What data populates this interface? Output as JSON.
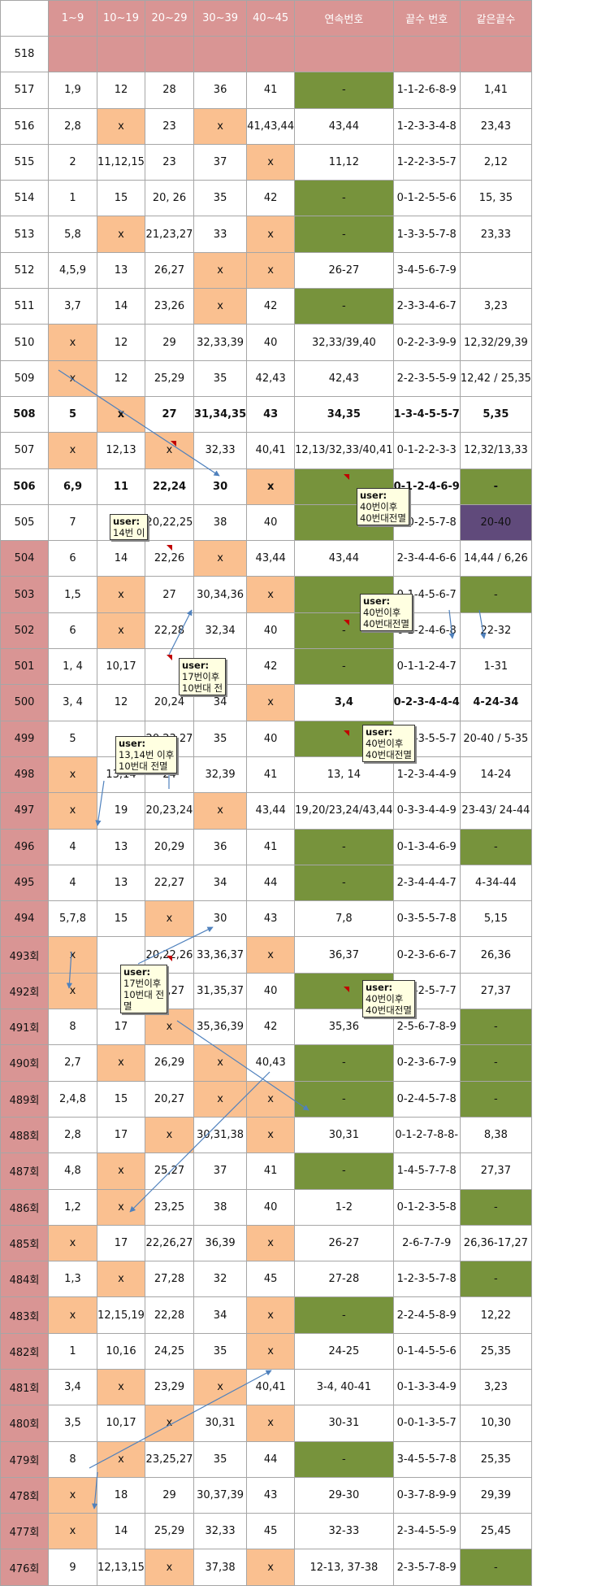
{
  "columns": [
    "1~9",
    "10~19",
    "20~29",
    "30~39",
    "40~45",
    "연속번호",
    "끝수 번호",
    "같은끝수"
  ],
  "rows": [
    {
      "round": "518",
      "cells": [
        "",
        "",
        "",
        "",
        "",
        "",
        "",
        ""
      ],
      "pink_row": true
    },
    {
      "round": "517",
      "cells": [
        "1,9",
        "12",
        "28",
        "36",
        "41",
        "-",
        "1-1-2-6-8-9",
        "1,41"
      ],
      "g": [
        5
      ]
    },
    {
      "round": "516",
      "cells": [
        "2,8",
        "x",
        "23",
        "x",
        "41,43,44",
        "43,44",
        "1-2-3-3-4-8",
        "23,43"
      ],
      "x": [
        1,
        3
      ]
    },
    {
      "round": "515",
      "cells": [
        "2",
        "11,12,15",
        "23",
        "37",
        "x",
        "11,12",
        "1-2-2-3-5-7",
        "2,12"
      ],
      "x": [
        4
      ]
    },
    {
      "round": "514",
      "cells": [
        "1",
        "15",
        "20, 26",
        "35",
        "42",
        "-",
        "0-1-2-5-5-6",
        "15, 35"
      ],
      "g": [
        5
      ]
    },
    {
      "round": "513",
      "cells": [
        "5,8",
        "x",
        "21,23,27",
        "33",
        "x",
        "-",
        "1-3-3-5-7-8",
        "23,33"
      ],
      "x": [
        1,
        4
      ],
      "g": [
        5
      ]
    },
    {
      "round": "512",
      "cells": [
        "4,5,9",
        "13",
        "26,27",
        "x",
        "x",
        "26-27",
        "3-4-5-6-7-9",
        ""
      ],
      "x": [
        3,
        4
      ]
    },
    {
      "round": "511",
      "cells": [
        "3,7",
        "14",
        "23,26",
        "x",
        "42",
        "-",
        "2-3-3-4-6-7",
        "3,23"
      ],
      "x": [
        3
      ],
      "g": [
        5
      ]
    },
    {
      "round": "510",
      "cells": [
        "x",
        "12",
        "29",
        "32,33,39",
        "40",
        "32,33/39,40",
        "0-2-2-3-9-9",
        "12,32/29,39"
      ],
      "x": [
        0
      ]
    },
    {
      "round": "509",
      "cells": [
        "x",
        "12",
        "25,29",
        "35",
        "42,43",
        "42,43",
        "2-2-3-5-5-9",
        "12,42 / 25,35"
      ],
      "x": [
        0
      ]
    },
    {
      "round": "508",
      "cells": [
        "5",
        "x",
        "27",
        "31,34,35",
        "43",
        "34,35",
        "1-3-4-5-5-7",
        "5,35"
      ],
      "x": [
        1
      ],
      "bold": true
    },
    {
      "round": "507",
      "cells": [
        "x",
        "12,13",
        "x",
        "32,33",
        "40,41",
        "12,13/32,33/40,41",
        "0-1-2-2-3-3",
        "12,32/13,33"
      ],
      "x": [
        0,
        2
      ],
      "small": [
        5
      ]
    },
    {
      "round": "506",
      "cells": [
        "6,9",
        "11",
        "22,24",
        "30",
        "x",
        "",
        "0-1-2-4-6-9",
        "-"
      ],
      "x": [
        4
      ],
      "g": [
        5,
        7
      ],
      "bold": true
    },
    {
      "round": "505",
      "cells": [
        "7",
        "",
        "20,22,25",
        "38",
        "40",
        "",
        "0-0-2-5-7-8",
        "20-40"
      ],
      "g": [
        5
      ],
      "p": [
        7
      ]
    },
    {
      "round": "504",
      "cells": [
        "6",
        "14",
        "22,26",
        "x",
        "43,44",
        "43,44",
        "2-3-4-4-6-6",
        "14,44 / 6,26"
      ],
      "x": [
        3
      ],
      "pink_num": true
    },
    {
      "round": "503",
      "cells": [
        "1,5",
        "x",
        "27",
        "30,34,36",
        "x",
        "",
        "0-1-4-5-6-7",
        "-"
      ],
      "x": [
        1,
        4
      ],
      "g": [
        5,
        7
      ],
      "pink_num": true
    },
    {
      "round": "502",
      "cells": [
        "6",
        "x",
        "22,28",
        "32,34",
        "40",
        "-",
        "0-2-2-4-6-8",
        "22-32"
      ],
      "x": [
        1
      ],
      "g": [
        5
      ],
      "pink_num": true
    },
    {
      "round": "501",
      "cells": [
        "1,  4",
        "10,17",
        "",
        "31",
        "42",
        "-",
        "0-1-1-2-4-7",
        "1-31"
      ],
      "g": [
        5
      ],
      "pink_num": true
    },
    {
      "round": "500",
      "cells": [
        "3,  4",
        "12",
        "20,24",
        "34",
        "x",
        "3,4",
        "0-2-3-4-4-4",
        "4-24-34"
      ],
      "x": [
        4
      ],
      "pink_num": true,
      "bold_cols": [
        5,
        6,
        7
      ]
    },
    {
      "round": "499",
      "cells": [
        "5",
        "",
        "20,23,27",
        "35",
        "40",
        "",
        "0-0-3-5-5-7",
        "20-40 / 5-35"
      ],
      "g": [
        5
      ],
      "pink_num": true
    },
    {
      "round": "498",
      "cells": [
        "x",
        "13,14",
        "24",
        "32,39",
        "41",
        "13, 14",
        "1-2-3-4-4-9",
        "14-24"
      ],
      "x": [
        0
      ],
      "pink_num": true
    },
    {
      "round": "497",
      "cells": [
        "x",
        "19",
        "20,23,24",
        "x",
        "43,44",
        "19,20/23,24/43,44",
        "0-3-3-4-4-9",
        "23-43/ 24-44"
      ],
      "x": [
        0,
        3
      ],
      "small": [
        5
      ],
      "pink_num": true
    },
    {
      "round": "496",
      "cells": [
        "4",
        "13",
        "20,29",
        "36",
        "41",
        "-",
        "0-1-3-4-6-9",
        "-"
      ],
      "g": [
        5,
        7
      ],
      "pink_num": true
    },
    {
      "round": "495",
      "cells": [
        "4",
        "13",
        "22,27",
        "34",
        "44",
        "-",
        "2-3-4-4-4-7",
        "4-34-44"
      ],
      "g": [
        5
      ],
      "pink_num": true
    },
    {
      "round": "494",
      "cells": [
        "5,7,8",
        "15",
        "x",
        "30",
        "43",
        "7,8",
        "0-3-5-5-7-8",
        "5,15"
      ],
      "x": [
        2
      ],
      "pink_num": true
    },
    {
      "round": "493회",
      "cells": [
        "x",
        "",
        "20,22,26",
        "33,36,37",
        "x",
        "36,37",
        "0-2-3-6-6-7",
        "26,36"
      ],
      "x": [
        0,
        4
      ],
      "pink_num": true
    },
    {
      "round": "492회",
      "cells": [
        "x",
        "",
        "22,27",
        "31,35,37",
        "40",
        "",
        "0-1-2-5-7-7",
        "27,37"
      ],
      "x": [
        0
      ],
      "g": [
        5
      ],
      "pink_num": true
    },
    {
      "round": "491회",
      "cells": [
        "8",
        "17",
        "x",
        "35,36,39",
        "42",
        "35,36",
        "2-5-6-7-8-9",
        "-"
      ],
      "x": [
        2
      ],
      "g": [
        7
      ],
      "pink_num": true
    },
    {
      "round": "490회",
      "cells": [
        "2,7",
        "x",
        "26,29",
        "x",
        "40,43",
        "-",
        "0-2-3-6-7-9",
        "-"
      ],
      "x": [
        1,
        3
      ],
      "g": [
        5,
        7
      ],
      "pink_num": true
    },
    {
      "round": "489회",
      "cells": [
        "2,4,8",
        "15",
        "20,27",
        "x",
        "x",
        "-",
        "0-2-4-5-7-8",
        "-"
      ],
      "x": [
        3,
        4
      ],
      "g": [
        5,
        7
      ],
      "pink_num": true
    },
    {
      "round": "488회",
      "cells": [
        "2,8",
        "17",
        "x",
        "30,31,38",
        "x",
        "30,31",
        "0-1-2-7-8-8-",
        "8,38"
      ],
      "x": [
        2,
        4
      ],
      "pink_num": true
    },
    {
      "round": "487회",
      "cells": [
        "4,8",
        "x",
        "25,27",
        "37",
        "41",
        "-",
        "1-4-5-7-7-8",
        "27,37"
      ],
      "x": [
        1
      ],
      "g": [
        5
      ],
      "pink_num": true
    },
    {
      "round": "486회",
      "cells": [
        "1,2",
        "x",
        "23,25",
        "38",
        "40",
        "1-2",
        "0-1-2-3-5-8",
        "-"
      ],
      "x": [
        1
      ],
      "g": [
        7
      ],
      "pink_num": true
    },
    {
      "round": "485회",
      "cells": [
        "x",
        "17",
        "22,26,27",
        "36,39",
        "x",
        "26-27",
        "2-6-7-7-9",
        "26,36-17,27"
      ],
      "x": [
        0,
        4
      ],
      "pink_num": true
    },
    {
      "round": "484회",
      "cells": [
        "1,3",
        "x",
        "27,28",
        "32",
        "45",
        "27-28",
        "1-2-3-5-7-8",
        "-"
      ],
      "x": [
        1
      ],
      "g": [
        7
      ],
      "pink_num": true
    },
    {
      "round": "483회",
      "cells": [
        "x",
        "12,15,19",
        "22,28",
        "34",
        "x",
        "-",
        "2-2-4-5-8-9",
        "12,22"
      ],
      "x": [
        0,
        4
      ],
      "g": [
        5
      ],
      "pink_num": true
    },
    {
      "round": "482회",
      "cells": [
        "1",
        "10,16",
        "24,25",
        "35",
        "x",
        "24-25",
        "0-1-4-5-5-6",
        "25,35"
      ],
      "x": [
        4
      ],
      "pink_num": true
    },
    {
      "round": "481회",
      "cells": [
        "3,4",
        "x",
        "23,29",
        "x",
        "40,41",
        "3-4, 40-41",
        "0-1-3-3-4-9",
        "3,23"
      ],
      "x": [
        1,
        3
      ],
      "pink_num": true
    },
    {
      "round": "480회",
      "cells": [
        "3,5",
        "10,17",
        "x",
        "30,31",
        "x",
        "30-31",
        "0-0-1-3-5-7",
        "10,30"
      ],
      "x": [
        2,
        4
      ],
      "pink_num": true
    },
    {
      "round": "479회",
      "cells": [
        "8",
        "x",
        "23,25,27",
        "35",
        "44",
        "-",
        "3-4-5-5-7-8",
        "25,35"
      ],
      "x": [
        1
      ],
      "g": [
        5
      ],
      "pink_num": true
    },
    {
      "round": "478회",
      "cells": [
        "x",
        "18",
        "29",
        "30,37,39",
        "43",
        "29-30",
        "0-3-7-8-9-9",
        "29,39"
      ],
      "x": [
        0
      ],
      "pink_num": true
    },
    {
      "round": "477회",
      "cells": [
        "x",
        "14",
        "25,29",
        "32,33",
        "45",
        "32-33",
        "2-3-4-5-5-9",
        "25,45"
      ],
      "x": [
        0
      ],
      "pink_num": true
    },
    {
      "round": "476회",
      "cells": [
        "9",
        "12,13,15",
        "x",
        "37,38",
        "x",
        "12-13, 37-38",
        "2-3-5-7-8-9",
        "-"
      ],
      "x": [
        2,
        4
      ],
      "g": [
        7
      ],
      "pink_num": true
    }
  ],
  "notes": [
    {
      "id": "note-505",
      "title": "user:",
      "lines": [
        "14번 이"
      ]
    },
    {
      "id": "note-506",
      "title": "user:",
      "lines": [
        "40번이후",
        "40번대전멸"
      ]
    },
    {
      "id": "note-503",
      "title": "user:",
      "lines": [
        "40번이후",
        "40번대전멸"
      ]
    },
    {
      "id": "note-501",
      "title": "user:",
      "lines": [
        "17번이후",
        "10번대 전"
      ]
    },
    {
      "id": "note-500",
      "title": "user:",
      "lines": [
        "40번이후",
        "40번대전멸"
      ]
    },
    {
      "id": "note-499",
      "title": "user:",
      "lines": [
        "13,14번 이후",
        "10번대 전멸"
      ]
    },
    {
      "id": "note-493",
      "title": "user:",
      "lines": [
        "17번이후",
        "10번대 전",
        "멸"
      ]
    },
    {
      "id": "note-492",
      "title": "user:",
      "lines": [
        "40번이후",
        "40번대전멸"
      ]
    }
  ],
  "colors": {
    "header_pink": "#d99594",
    "x_orange": "#fac090",
    "consecutive_green": "#77933c",
    "purple": "#604a7b",
    "grid": "#a6a6a6",
    "arrow": "#4f81bd",
    "note_bg": "#ffffe1"
  }
}
